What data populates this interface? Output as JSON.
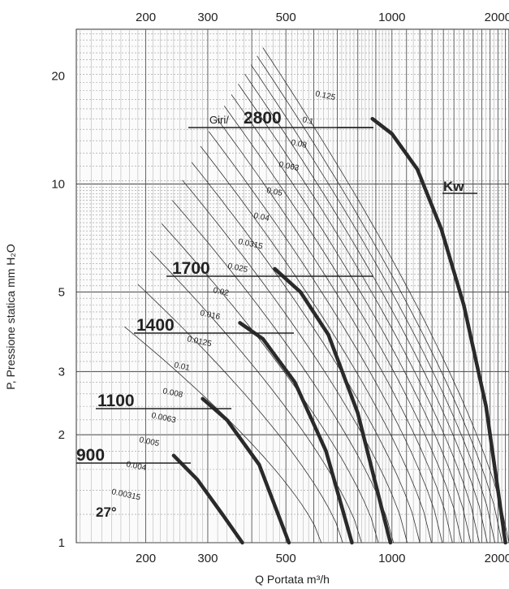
{
  "chart_data": {
    "type": "line",
    "xlabel": "Q Portata m³/h",
    "ylabel": "P, Pressione statica mm H₂O",
    "x_scale": "log",
    "y_scale": "log",
    "xlim": [
      127,
      2150
    ],
    "ylim": [
      1,
      27
    ],
    "grid": true,
    "x_ticks_top": [
      "200",
      "300",
      "500",
      "1000",
      "2000"
    ],
    "x_ticks_bottom": [
      "200",
      "300",
      "500",
      "1000",
      "2000"
    ],
    "y_ticks": [
      "1",
      "2",
      "3",
      "5",
      "10",
      "20"
    ],
    "x_tick_values": [
      200,
      300,
      500,
      1000,
      2000
    ],
    "y_tick_values": [
      1,
      2,
      3,
      5,
      10,
      20
    ],
    "rpm_prefix": "Giri/",
    "unit_label": "Kw",
    "corner_label": "27°",
    "series": [
      {
        "name": "900",
        "x": [
          240,
          280,
          330,
          376
        ],
        "y": [
          1.75,
          1.5,
          1.2,
          1.0
        ]
      },
      {
        "name": "1100",
        "x": [
          290,
          340,
          420,
          510
        ],
        "y": [
          2.52,
          2.2,
          1.65,
          1.0
        ]
      },
      {
        "name": "1400",
        "x": [
          370,
          430,
          530,
          650,
          770
        ],
        "y": [
          4.1,
          3.7,
          2.8,
          1.8,
          1.0
        ]
      },
      {
        "name": "1700",
        "x": [
          465,
          550,
          660,
          800,
          990
        ],
        "y": [
          5.8,
          5.0,
          3.8,
          2.3,
          1.0
        ]
      },
      {
        "name": "2800",
        "x": [
          880,
          1000,
          1180,
          1380,
          1600,
          1850,
          2100
        ],
        "y": [
          15.2,
          13.8,
          11.0,
          7.5,
          4.6,
          2.4,
          1.0
        ]
      }
    ],
    "power_labels": [
      "0.125",
      "0.1",
      "0.08",
      "0.063",
      "0.05",
      "0.04",
      "0.0315",
      "0.025",
      "0.02",
      "0.016",
      "0.0125",
      "0.01",
      "0.008",
      "0.0063",
      "0.005",
      "0.004",
      "0.00315"
    ]
  }
}
